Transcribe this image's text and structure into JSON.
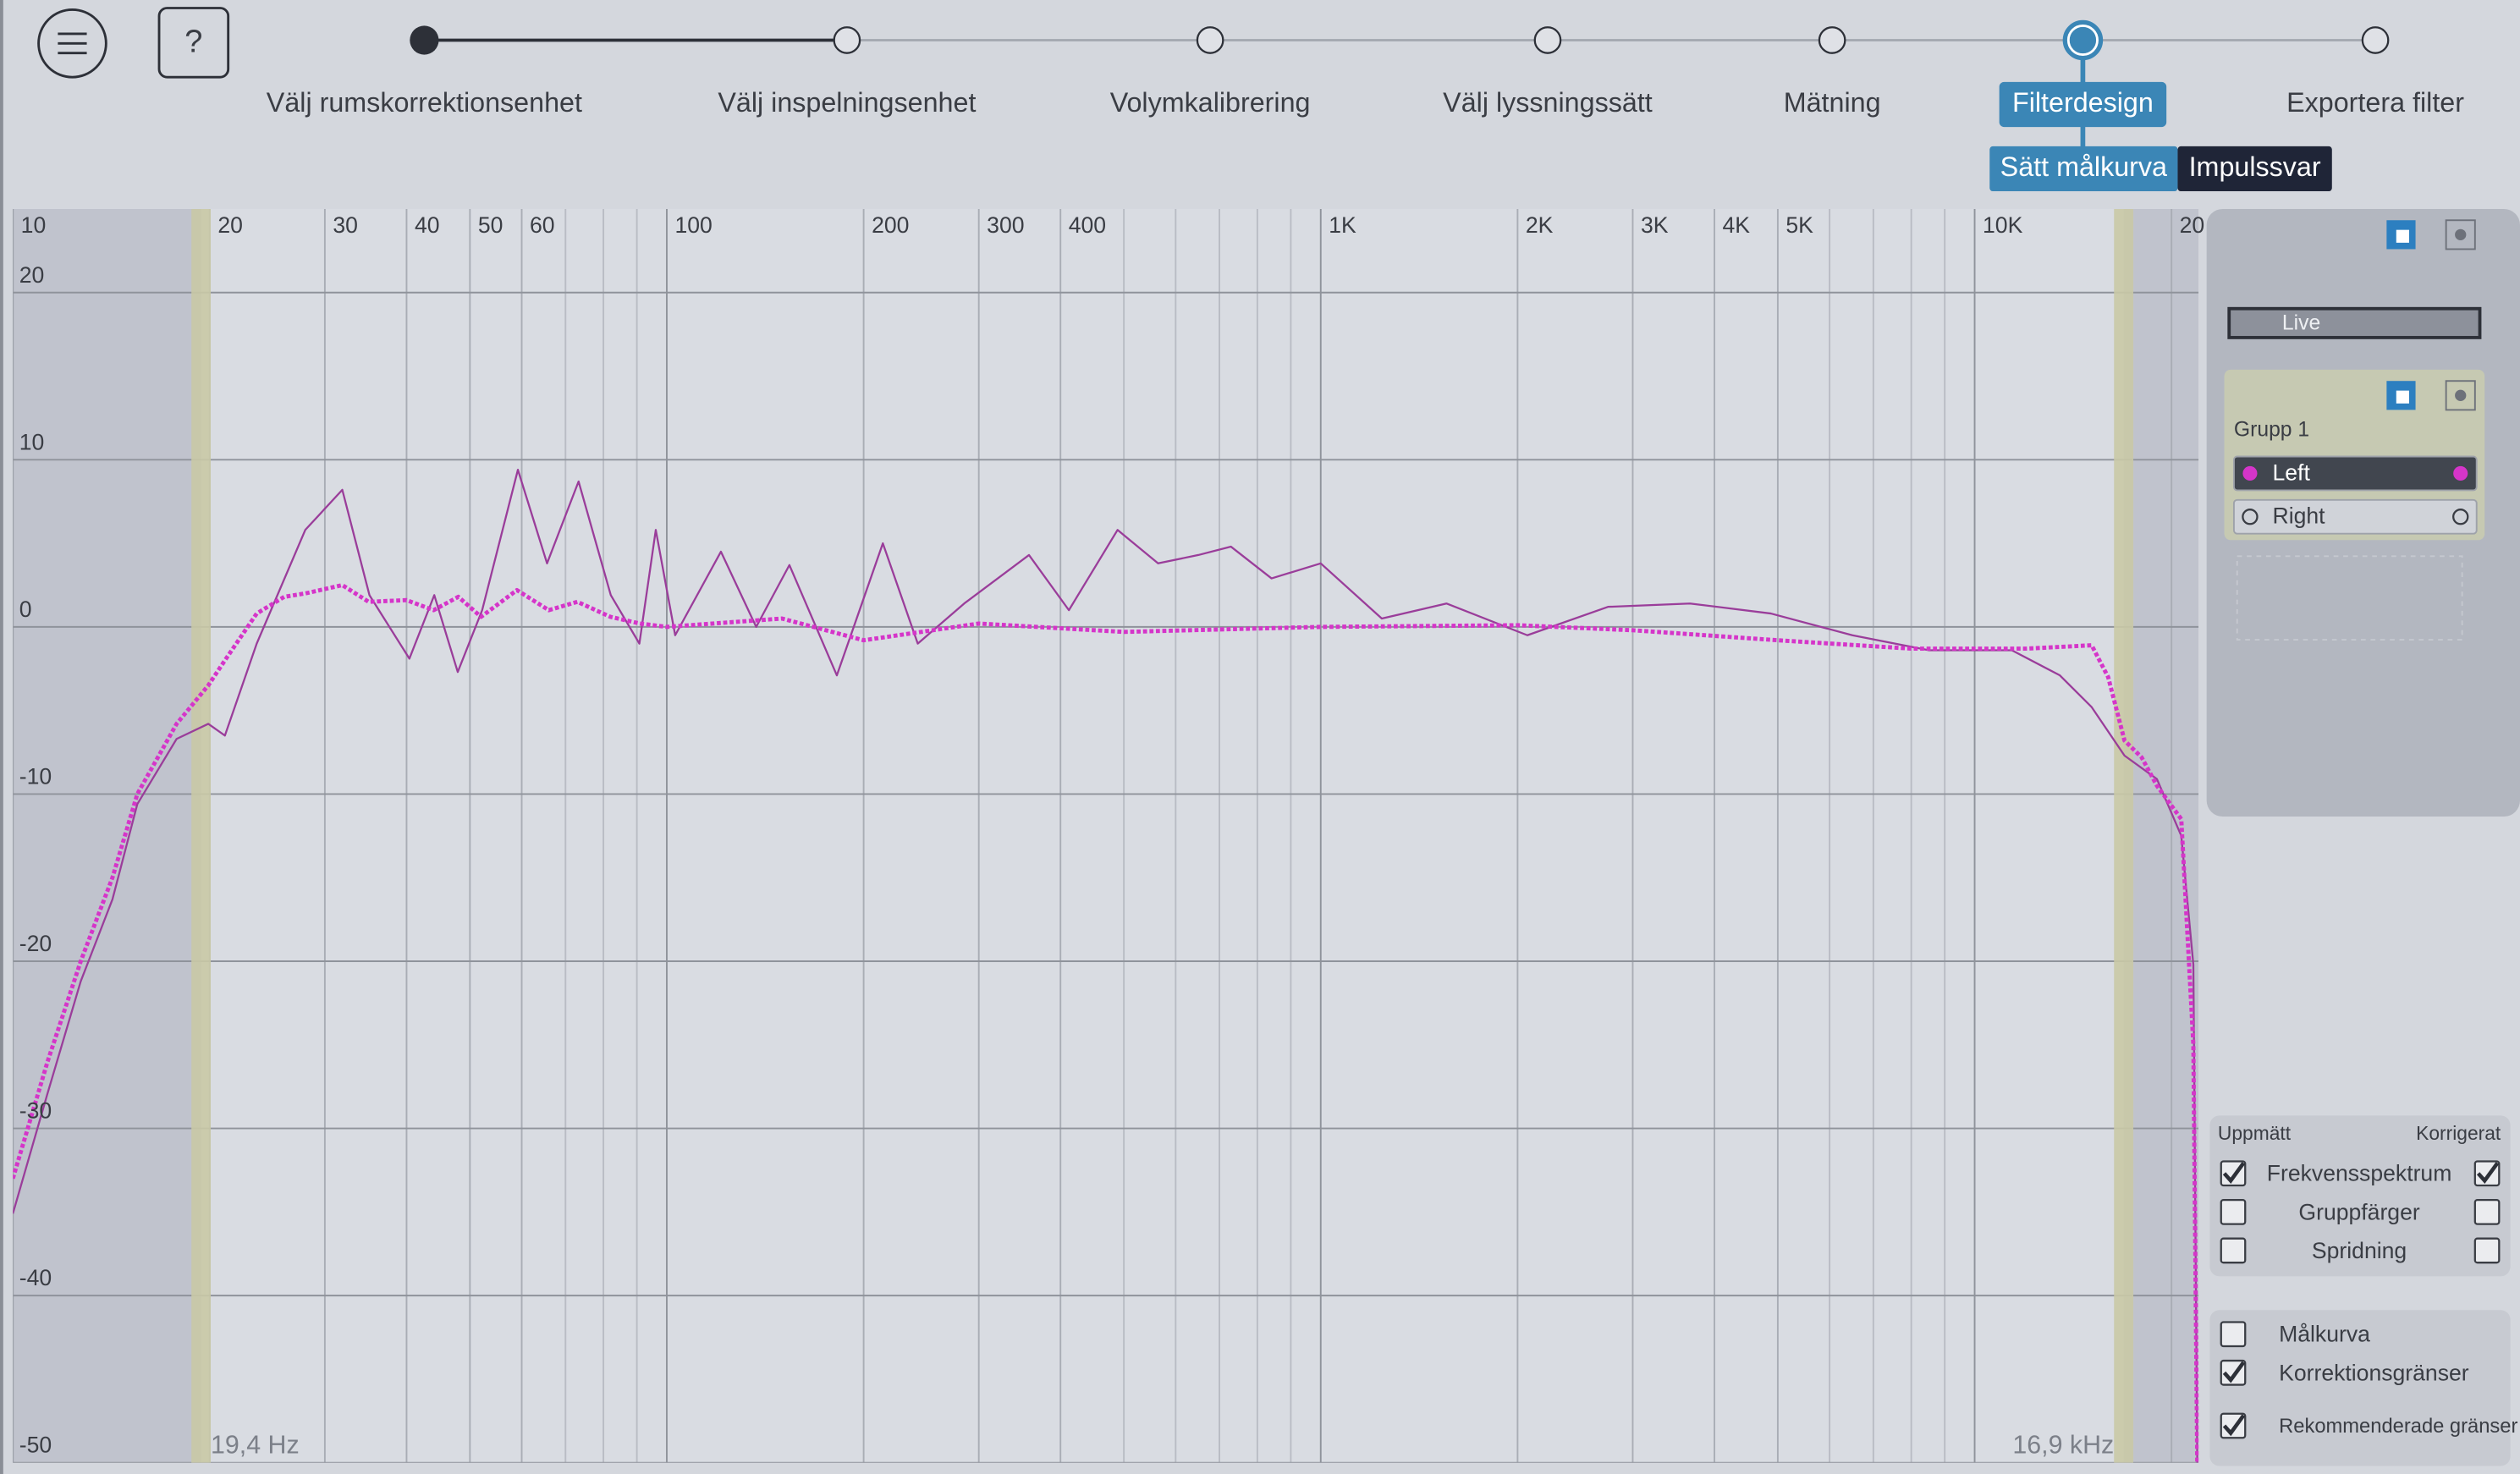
{
  "header": {
    "help_label": "?",
    "steps": [
      {
        "label": "Välj rumskorrektionsenhet",
        "status": "done"
      },
      {
        "label": "Välj inspelningsenhet",
        "status": "todo"
      },
      {
        "label": "Volymkalibrering",
        "status": "todo"
      },
      {
        "label": "Välj lyssningssätt",
        "status": "todo"
      },
      {
        "label": "Mätning",
        "status": "todo"
      },
      {
        "label": "Filterdesign",
        "status": "active"
      },
      {
        "label": "Exportera filter",
        "status": "todo"
      }
    ],
    "subtabs": [
      {
        "label": "Sätt målkurva",
        "selected": true
      },
      {
        "label": "Impulssvar",
        "selected": false
      }
    ]
  },
  "chart_data": {
    "type": "line",
    "xscale": "log",
    "xlim": [
      10,
      22000
    ],
    "ylim": [
      -50,
      25
    ],
    "grid": true,
    "xticks": [
      10,
      20,
      30,
      40,
      50,
      60,
      100,
      200,
      300,
      400,
      {
        "value": 1000,
        "label": "1K"
      },
      {
        "value": 2000,
        "label": "2K"
      },
      {
        "value": 3000,
        "label": "3K"
      },
      {
        "value": 4000,
        "label": "4K"
      },
      {
        "value": 5000,
        "label": "5K"
      },
      {
        "value": 10000,
        "label": "10K"
      },
      {
        "value": 20000,
        "label": "20"
      }
    ],
    "xminor": [
      70,
      80,
      90,
      500,
      600,
      700,
      800,
      900,
      6000,
      7000,
      8000,
      9000
    ],
    "yticks": [
      -50,
      -40,
      -30,
      -20,
      -10,
      0,
      10,
      20
    ],
    "limits": [
      {
        "value": 19.4,
        "label": "19,4 Hz"
      },
      {
        "value": 16900,
        "label": "16,9 kHz"
      }
    ],
    "series": [
      {
        "name": "Uppmätt",
        "color": "#9a3d9a",
        "style": "solid",
        "x": [
          10,
          11.3,
          12.7,
          14.2,
          15.5,
          17.8,
          19.9,
          21.1,
          23.6,
          28,
          31.9,
          35.1,
          40.4,
          44.1,
          47.9,
          52.2,
          59.2,
          65.6,
          73.3,
          82.1,
          90.8,
          96.2,
          103,
          121,
          137,
          154,
          182,
          214,
          242,
          285,
          358,
          412,
          489,
          564,
          650,
          729,
          841,
          1000,
          1240,
          1557,
          2070,
          2750,
          3670,
          4880,
          6500,
          8520,
          11400,
          13500,
          15100,
          16950,
          19000,
          20700,
          21600,
          21900
        ],
        "values": [
          -35.1,
          -27.9,
          -21.2,
          -16.3,
          -10.6,
          -6.7,
          -5.8,
          -6.5,
          -1,
          5.8,
          8.2,
          1.9,
          -1.9,
          1.9,
          -2.7,
          1,
          9.4,
          3.8,
          8.7,
          1.9,
          -1,
          5.8,
          -0.5,
          4.5,
          0,
          3.7,
          -2.9,
          5,
          -1,
          1.4,
          4.3,
          1,
          5.8,
          3.8,
          4.3,
          4.8,
          2.9,
          3.8,
          0.5,
          1.4,
          -0.5,
          1.2,
          1.4,
          0.8,
          -0.5,
          -1.4,
          -1.4,
          -2.9,
          -4.8,
          -7.7,
          -9.1,
          -12.5,
          -20.2,
          -50
        ]
      },
      {
        "name": "Korrigerat",
        "color": "#d535c9",
        "style": "dotted",
        "x": [
          10,
          11.3,
          12.7,
          14.2,
          15.5,
          17.8,
          19.9,
          21.1,
          23.6,
          26,
          28,
          31.9,
          35,
          40,
          44,
          48,
          52,
          59,
          66,
          73,
          82,
          91,
          100,
          150,
          200,
          300,
          500,
          1000,
          2000,
          3000,
          5000,
          8000,
          12000,
          15100,
          16000,
          16950,
          18000,
          19000,
          20700,
          21600,
          21900
        ],
        "values": [
          -33,
          -26,
          -20,
          -15,
          -10,
          -5.8,
          -3.5,
          -2,
          0.8,
          1.8,
          2,
          2.5,
          1.5,
          1.6,
          1,
          1.8,
          0.6,
          2.2,
          1,
          1.5,
          0.6,
          0.2,
          0,
          0.5,
          -0.8,
          0.2,
          -0.3,
          0,
          0.1,
          -0.2,
          -0.8,
          -1.3,
          -1.3,
          -1.1,
          -3,
          -6.8,
          -7.8,
          -9.5,
          -11.5,
          -25,
          -50
        ]
      }
    ]
  },
  "sidebar": {
    "live": "Live",
    "group": {
      "title": "Grupp 1",
      "channels": [
        {
          "label": "Left",
          "color": "#d535c9",
          "selected": true
        },
        {
          "label": "Right",
          "color": "#3a3d44",
          "selected": false
        }
      ]
    }
  },
  "display_options": [
    {
      "label": "Frekvensspektrum",
      "measured": true,
      "corrected": true
    },
    {
      "label": "Gruppfärger",
      "measured": false,
      "corrected": false
    },
    {
      "label": "Spridning",
      "measured": false,
      "corrected": false
    }
  ],
  "overlay_options": [
    {
      "label": "Målkurva",
      "checked": false
    },
    {
      "label": "Korrektionsgränser",
      "checked": true
    },
    {
      "label": "Rekommenderade gränser",
      "checked": true
    }
  ]
}
